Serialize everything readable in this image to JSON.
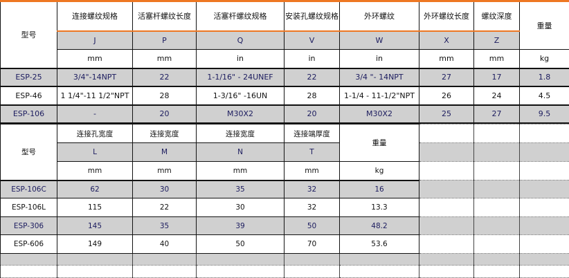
{
  "table1": {
    "model_header": "型号",
    "weight_header": "重量",
    "weight_unit": "kg",
    "columns": [
      {
        "name": "连接螺纹规格",
        "code": "J",
        "unit": "mm"
      },
      {
        "name": "活塞杆螺纹长度",
        "code": "P",
        "unit": "mm"
      },
      {
        "name": "活塞杆螺纹规格",
        "code": "Q",
        "unit": "in"
      },
      {
        "name": "安装孔螺纹规格",
        "code": "V",
        "unit": "in"
      },
      {
        "name": "外环螺纹",
        "code": "W",
        "unit": "in"
      },
      {
        "name": "外环螺纹长度",
        "code": "X",
        "unit": "mm"
      },
      {
        "name": "螺纹深度",
        "code": "Z",
        "unit": "mm"
      }
    ],
    "rows": [
      [
        "ESP-25",
        "3/4\"-14NPT",
        "22",
        "1-1/16\" - 24UNEF",
        "22",
        "3/4 \"- 14NPT",
        "27",
        "17",
        "1.8"
      ],
      [
        "ESP-46",
        "1 1/4\"-11 1/2\"NPT",
        "28",
        "1-3/16\" -16UN",
        "28",
        "1-1/4 - 11-1/2\"NPT",
        "26",
        "24",
        "4.5"
      ],
      [
        "ESP-106",
        "-",
        "20",
        "M30X2",
        "20",
        "M30X2",
        "25",
        "27",
        "9.5"
      ]
    ]
  },
  "table2": {
    "model_header": "型号",
    "weight_header": "重量",
    "weight_unit": "kg",
    "columns": [
      {
        "name": "连接孔宽度",
        "code": "L",
        "unit": "mm"
      },
      {
        "name": "连接宽度",
        "code": "M",
        "unit": "mm"
      },
      {
        "name": "连接宽度",
        "code": "N",
        "unit": "mm"
      },
      {
        "name": "连接端厚度",
        "code": "T",
        "unit": "mm"
      }
    ],
    "rows": [
      [
        "ESP-106C",
        "62",
        "30",
        "35",
        "32",
        "16"
      ],
      [
        "ESP-106L",
        "115",
        "22",
        "30",
        "32",
        "13.3"
      ],
      [
        "ESP-306",
        "145",
        "35",
        "39",
        "50",
        "48.2"
      ],
      [
        "ESP-606",
        "149",
        "40",
        "50",
        "70",
        "53.6"
      ]
    ]
  },
  "colors": {
    "accent": "#ee7722",
    "row_shade": "#d0d0d0",
    "shaded_text": "#1b1b5e"
  }
}
